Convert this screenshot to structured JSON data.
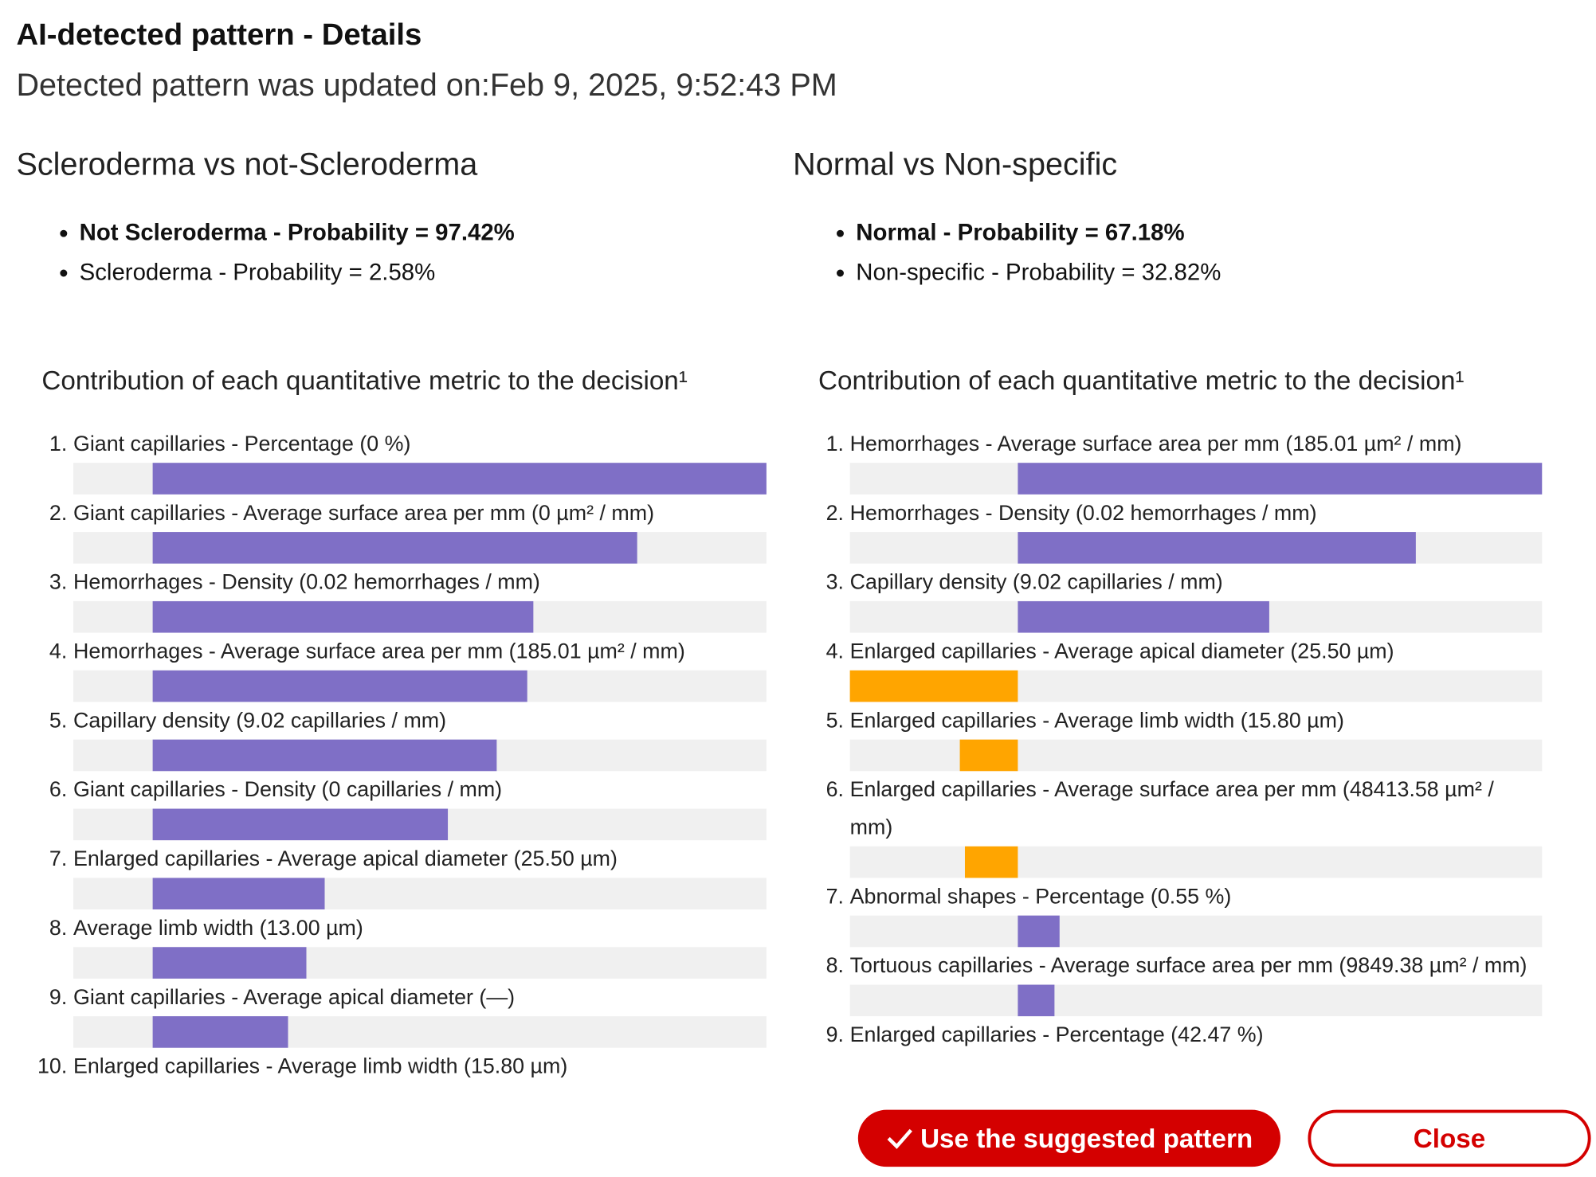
{
  "header": {
    "title": "AI-detected pattern - Details",
    "updated_label": "Detected pattern was updated on:",
    "updated_value": "Feb 9, 2025, 9:52:43 PM"
  },
  "panels": [
    {
      "title": "Scleroderma vs not-Scleroderma",
      "results": [
        {
          "text": "Not Scleroderma - Probability = 97.42%",
          "bold": true
        },
        {
          "text": "Scleroderma - Probability = 2.58%",
          "bold": false
        }
      ]
    },
    {
      "title": "Normal vs Non-specific",
      "results": [
        {
          "text": "Normal - Probability = 67.18%",
          "bold": true
        },
        {
          "text": "Non-specific - Probability = 32.82%",
          "bold": false
        }
      ]
    }
  ],
  "chart_data": [
    {
      "type": "bar",
      "orientation": "horizontal",
      "title": "Contribution of each quantitative metric to the decision¹",
      "ranks": [
        "1.",
        "2.",
        "3.",
        "4.",
        "5.",
        "6.",
        "7.",
        "8.",
        "9.",
        "10."
      ],
      "categories": [
        "Giant capillaries - Percentage (0 %)",
        "Giant capillaries - Average surface area per mm (0 µm² / mm)",
        "Hemorrhages - Density (0.02 hemorrhages / mm)",
        "Hemorrhages - Average surface area per mm (185.01 µm² / mm)",
        "Capillary density (9.02 capillaries / mm)",
        "Giant capillaries - Density (0 capillaries / mm)",
        "Enlarged capillaries - Average apical diameter (25.50 µm)",
        "Average limb width (13.00 µm)",
        "Giant capillaries - Average apical diameter (—)",
        "Enlarged capillaries - Average limb width (15.80 µm)"
      ],
      "values": [
        1,
        0.79,
        0.62,
        0.61,
        0.56,
        0.48,
        0.28,
        0.25,
        0.22,
        null
      ],
      "xlim": [
        -0.13,
        1
      ],
      "positive_color": "#7f6fc6",
      "negative_color": "#ffa500",
      "track_color": "#f0f0f0"
    },
    {
      "type": "bar",
      "orientation": "horizontal",
      "title": "Contribution of each quantitative metric to the decision¹",
      "ranks": [
        "1.",
        "2.",
        "3.",
        "4.",
        "5.",
        "6.",
        "7.",
        "8.",
        "9."
      ],
      "categories": [
        "Hemorrhages - Average surface area per mm (185.01 µm² / mm)",
        "Hemorrhages - Density (0.02 hemorrhages / mm)",
        "Capillary density (9.02 capillaries / mm)",
        "Enlarged capillaries - Average apical diameter (25.50 µm)",
        "Enlarged capillaries - Average limb width (15.80 µm)",
        "Enlarged capillaries - Average surface area per mm (48413.58 µm² / mm)",
        "Abnormal shapes - Percentage (0.55 %)",
        "Tortuous capillaries - Average surface area per mm (9849.38 µm² / mm)",
        "Enlarged capillaries - Percentage (42.47 %)"
      ],
      "values": [
        1,
        0.76,
        0.48,
        -0.32,
        -0.11,
        -0.1,
        0.08,
        0.07,
        null
      ],
      "xlim": [
        -0.32,
        1
      ],
      "positive_color": "#7f6fc6",
      "negative_color": "#ffa500",
      "track_color": "#f0f0f0"
    }
  ],
  "buttons": {
    "apply": "Use the suggested pattern",
    "close": "Close"
  }
}
